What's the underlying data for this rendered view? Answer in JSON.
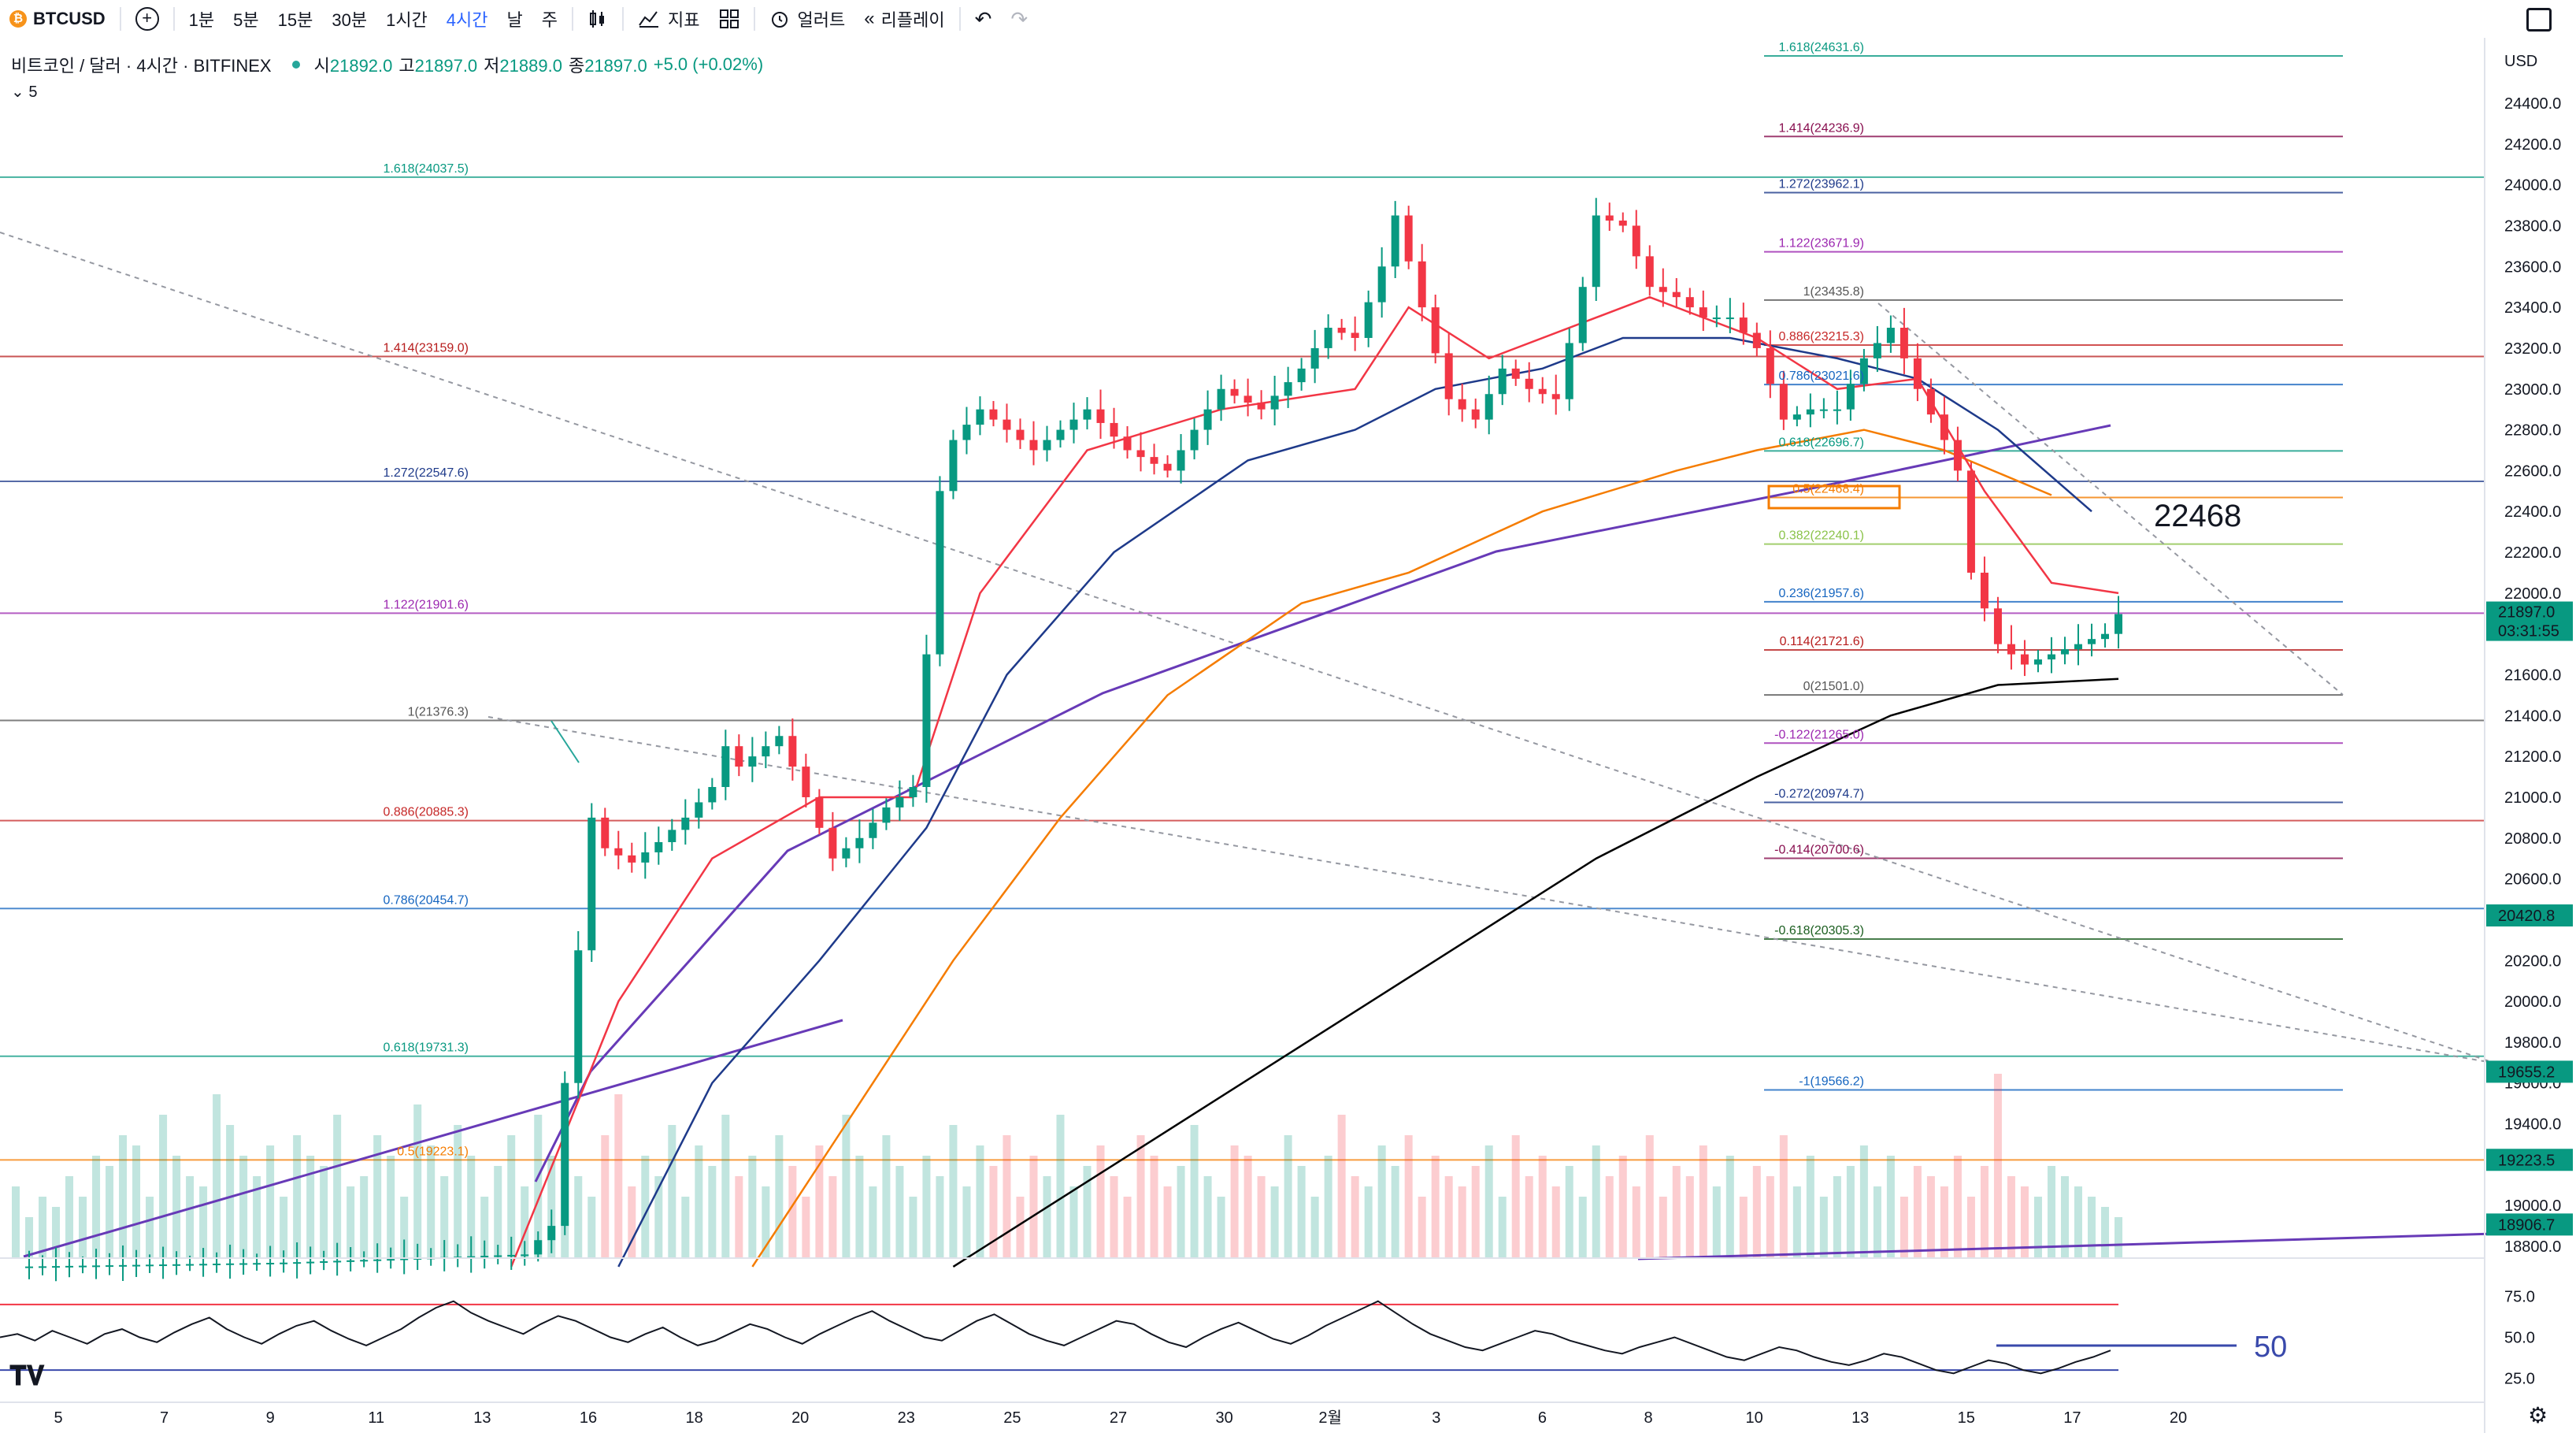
{
  "toolbar": {
    "symbol": "BTCUSD",
    "intervals": [
      "1분",
      "5분",
      "15분",
      "30분",
      "1시간",
      "4시간",
      "날",
      "주"
    ],
    "active_interval": "4시간",
    "indicators_label": "지표",
    "alert_label": "얼러트",
    "replay_label": "리플레이"
  },
  "legend": {
    "title": "비트코인 / 달러 · 4시간 · BITFINEX",
    "open_label": "시",
    "open": "21892.0",
    "high_label": "고",
    "high": "21897.0",
    "low_label": "저",
    "low": "21889.0",
    "close_label": "종",
    "close": "21897.0",
    "change": "+5.0 (+0.02%)",
    "indicator_value": "5"
  },
  "price_axis": {
    "currency": "USD",
    "ticks": [
      "24400.0",
      "24200.0",
      "24000.0",
      "23800.0",
      "23600.0",
      "23400.0",
      "23200.0",
      "23000.0",
      "22800.0",
      "22600.0",
      "22400.0",
      "22200.0",
      "22000.0",
      "21800.0",
      "21600.0",
      "21400.0",
      "21200.0",
      "21000.0",
      "20800.0",
      "20600.0",
      "20400.0",
      "20200.0",
      "20000.0",
      "19800.0",
      "19600.0",
      "19400.0",
      "19200.0",
      "19000.0",
      "18800.0"
    ],
    "tick_values": [
      24400,
      24200,
      24000,
      23800,
      23600,
      23400,
      23200,
      23000,
      22800,
      22600,
      22400,
      22200,
      22000,
      21800,
      21600,
      21400,
      21200,
      21000,
      20800,
      20600,
      20400,
      20200,
      20000,
      19800,
      19600,
      19400,
      19200,
      19000,
      18800
    ],
    "price_tags": [
      {
        "text": "20420.8",
        "value": 20420.8,
        "color": "#089981"
      },
      {
        "text": "19655.2",
        "value": 19655.2,
        "color": "#089981"
      },
      {
        "text": "19223.5",
        "value": 19223.5,
        "color": "#089981"
      },
      {
        "text": "18906.7",
        "value": 18906.7,
        "color": "#089981"
      }
    ],
    "current_price": "21897.0",
    "countdown": "03:31:55"
  },
  "rsi_axis": {
    "ticks": [
      "75.0",
      "50.0",
      "25.0"
    ],
    "tick_values": [
      75,
      50,
      25
    ],
    "annotation": "50"
  },
  "time_axis": {
    "labels": [
      "5",
      "7",
      "9",
      "11",
      "13",
      "16",
      "18",
      "20",
      "23",
      "25",
      "27",
      "30",
      "2월",
      "3",
      "6",
      "8",
      "10",
      "13",
      "15",
      "17",
      "20"
    ]
  },
  "annotations": {
    "target_price": "22468"
  },
  "fib_left": [
    {
      "text": "1.618(24037.5)",
      "value": 24037.5,
      "color": "#089981"
    },
    {
      "text": "1.414(23159.0)",
      "value": 23159.0,
      "color": "#b71c1c"
    },
    {
      "text": "1.272(22547.6)",
      "value": 22547.6,
      "color": "#1e3a8a"
    },
    {
      "text": "1.122(21901.6)",
      "value": 21901.6,
      "color": "#9c27b0"
    },
    {
      "text": "1(21376.3)",
      "value": 21376.3,
      "color": "#555555"
    },
    {
      "text": "0.886(20885.3)",
      "value": 20885.3,
      "color": "#c62828"
    },
    {
      "text": "0.786(20454.7)",
      "value": 20454.7,
      "color": "#1565c0"
    },
    {
      "text": "0.618(19731.3)",
      "value": 19731.3,
      "color": "#089981"
    },
    {
      "text": "0.5(19223.1)",
      "value": 19223.1,
      "color": "#f57c00"
    }
  ],
  "fib_right": [
    {
      "text": "1.618(24631.6)",
      "value": 24631.6,
      "color": "#089981"
    },
    {
      "text": "1.414(24236.9)",
      "value": 24236.9,
      "color": "#880e4f"
    },
    {
      "text": "1.272(23962.1)",
      "value": 23962.1,
      "color": "#1e3a8a"
    },
    {
      "text": "1.122(23671.9)",
      "value": 23671.9,
      "color": "#9c27b0"
    },
    {
      "text": "1(23435.8)",
      "value": 23435.8,
      "color": "#555555"
    },
    {
      "text": "0.886(23215.3)",
      "value": 23215.3,
      "color": "#c62828"
    },
    {
      "text": "0.786(23021.6)",
      "value": 23021.6,
      "color": "#1565c0"
    },
    {
      "text": "0.618(22696.7)",
      "value": 22696.7,
      "color": "#089981"
    },
    {
      "text": "0.5(22468.4)",
      "value": 22468.4,
      "color": "#f57c00"
    },
    {
      "text": "0.382(22240.1)",
      "value": 22240.1,
      "color": "#8bc34a"
    },
    {
      "text": "0.236(21957.6)",
      "value": 21957.6,
      "color": "#1565c0"
    },
    {
      "text": "0.114(21721.6)",
      "value": 21721.6,
      "color": "#b71c1c"
    },
    {
      "text": "0(21501.0)",
      "value": 21501.0,
      "color": "#555555"
    },
    {
      "text": "-0.122(21265.0)",
      "value": 21265.0,
      "color": "#9c27b0"
    },
    {
      "text": "-0.272(20974.7)",
      "value": 20974.7,
      "color": "#1e3a8a"
    },
    {
      "text": "-0.414(20700.6)",
      "value": 20700.6,
      "color": "#880e4f"
    },
    {
      "text": "-0.618(20305.3)",
      "value": 20305.3,
      "color": "#1b5e20"
    },
    {
      "text": "-1(19566.2)",
      "value": 19566.2,
      "color": "#1565c0"
    }
  ],
  "chart_data": {
    "type": "candlestick",
    "symbol": "BTCUSD",
    "x_labels": [
      "5",
      "7",
      "9",
      "11",
      "13",
      "16",
      "18",
      "20",
      "23",
      "25",
      "27",
      "30",
      "2월",
      "3",
      "6",
      "8",
      "10",
      "13"
    ],
    "ylim": [
      18700,
      24600
    ],
    "colors": {
      "up": "#089981",
      "down": "#f23645",
      "ma_fast": "#f23645",
      "ma_mid": "#1e3a8a",
      "ma_slow": "#f57c00",
      "ma_long": "#000000",
      "trend": "#673ab7"
    },
    "close_path": [
      [
        0,
        18700
      ],
      [
        20,
        18720
      ],
      [
        38,
        18760
      ],
      [
        40,
        18900
      ],
      [
        41,
        19600
      ],
      [
        42,
        20250
      ],
      [
        43,
        20900
      ],
      [
        44,
        20750
      ],
      [
        46,
        20680
      ],
      [
        48,
        20780
      ],
      [
        50,
        20900
      ],
      [
        52,
        21050
      ],
      [
        53,
        21250
      ],
      [
        54,
        21150
      ],
      [
        55,
        21200
      ],
      [
        57,
        21300
      ],
      [
        58,
        21150
      ],
      [
        60,
        20850
      ],
      [
        61,
        20700
      ],
      [
        63,
        20800
      ],
      [
        65,
        20950
      ],
      [
        67,
        21050
      ],
      [
        68,
        21700
      ],
      [
        69,
        22500
      ],
      [
        70,
        22750
      ],
      [
        72,
        22900
      ],
      [
        74,
        22800
      ],
      [
        76,
        22700
      ],
      [
        78,
        22800
      ],
      [
        80,
        22900
      ],
      [
        83,
        22700
      ],
      [
        86,
        22600
      ],
      [
        88,
        22800
      ],
      [
        90,
        23000
      ],
      [
        93,
        22900
      ],
      [
        96,
        23100
      ],
      [
        98,
        23300
      ],
      [
        100,
        23250
      ],
      [
        102,
        23600
      ],
      [
        103,
        23850
      ],
      [
        105,
        23400
      ],
      [
        107,
        22950
      ],
      [
        109,
        22850
      ],
      [
        111,
        23100
      ],
      [
        113,
        23000
      ],
      [
        115,
        22950
      ],
      [
        117,
        23500
      ],
      [
        118,
        23850
      ],
      [
        120,
        23800
      ],
      [
        122,
        23500
      ],
      [
        124,
        23450
      ],
      [
        126,
        23350
      ],
      [
        128,
        23350
      ],
      [
        130,
        23200
      ],
      [
        132,
        22850
      ],
      [
        134,
        22900
      ],
      [
        136,
        22900
      ],
      [
        138,
        23150
      ],
      [
        140,
        23300
      ],
      [
        142,
        23000
      ],
      [
        144,
        22750
      ],
      [
        145,
        22600
      ],
      [
        146,
        22100
      ],
      [
        148,
        21750
      ],
      [
        150,
        21650
      ],
      [
        152,
        21700
      ],
      [
        154,
        21750
      ],
      [
        156,
        21800
      ],
      [
        157,
        21897
      ]
    ],
    "ma_fast": [
      [
        37,
        18700
      ],
      [
        45,
        20000
      ],
      [
        52,
        20700
      ],
      [
        60,
        21000
      ],
      [
        67,
        21000
      ],
      [
        72,
        22000
      ],
      [
        80,
        22700
      ],
      [
        90,
        22900
      ],
      [
        100,
        23000
      ],
      [
        104,
        23400
      ],
      [
        110,
        23150
      ],
      [
        118,
        23350
      ],
      [
        122,
        23450
      ],
      [
        130,
        23250
      ],
      [
        136,
        23000
      ],
      [
        142,
        23050
      ],
      [
        147,
        22500
      ],
      [
        152,
        22050
      ],
      [
        157,
        22000
      ]
    ],
    "ma_mid": [
      [
        45,
        18700
      ],
      [
        52,
        19600
      ],
      [
        60,
        20200
      ],
      [
        68,
        20850
      ],
      [
        74,
        21600
      ],
      [
        82,
        22200
      ],
      [
        92,
        22650
      ],
      [
        100,
        22800
      ],
      [
        106,
        23000
      ],
      [
        114,
        23100
      ],
      [
        120,
        23250
      ],
      [
        128,
        23250
      ],
      [
        136,
        23150
      ],
      [
        142,
        23050
      ],
      [
        148,
        22800
      ],
      [
        155,
        22400
      ]
    ],
    "ma_slow": [
      [
        55,
        18700
      ],
      [
        62,
        19400
      ],
      [
        70,
        20200
      ],
      [
        78,
        20900
      ],
      [
        86,
        21500
      ],
      [
        96,
        21950
      ],
      [
        104,
        22100
      ],
      [
        114,
        22400
      ],
      [
        124,
        22600
      ],
      [
        130,
        22700
      ],
      [
        138,
        22800
      ],
      [
        144,
        22700
      ],
      [
        152,
        22480
      ]
    ],
    "ma_long": [
      [
        70,
        18700
      ],
      [
        82,
        19200
      ],
      [
        94,
        19700
      ],
      [
        106,
        20200
      ],
      [
        118,
        20700
      ],
      [
        130,
        21100
      ],
      [
        140,
        21400
      ],
      [
        148,
        21550
      ],
      [
        157,
        21580
      ]
    ],
    "volume": [
      0.35,
      0.2,
      0.3,
      0.25,
      0.4,
      0.3,
      0.5,
      0.45,
      0.6,
      0.55,
      0.3,
      0.7,
      0.5,
      0.4,
      0.35,
      0.8,
      0.65,
      0.5,
      0.4,
      0.55,
      0.3,
      0.6,
      0.5,
      0.45,
      0.7,
      0.35,
      0.4,
      0.6,
      0.5,
      0.3,
      0.75,
      0.55,
      0.4,
      0.65,
      0.5,
      0.3,
      0.45,
      0.6,
      0.35,
      0.7,
      0.5,
      0.55,
      0.4,
      0.3,
      0.6,
      0.8,
      0.35,
      0.5,
      0.4,
      0.65,
      0.3,
      0.55,
      0.45,
      0.7,
      0.4,
      0.5,
      0.35,
      0.6,
      0.45,
      0.3,
      0.55,
      0.4,
      0.7,
      0.5,
      0.35,
      0.6,
      0.45,
      0.3,
      0.5,
      0.4,
      0.65,
      0.35,
      0.55,
      0.45,
      0.6,
      0.3,
      0.5,
      0.4,
      0.7,
      0.35,
      0.45,
      0.55,
      0.4,
      0.3,
      0.6,
      0.5,
      0.35,
      0.45,
      0.65,
      0.4,
      0.3,
      0.55,
      0.5,
      0.4,
      0.35,
      0.6,
      0.45,
      0.3,
      0.5,
      0.7,
      0.4,
      0.35,
      0.55,
      0.45,
      0.6,
      0.3,
      0.5,
      0.4,
      0.35,
      0.45,
      0.55,
      0.3,
      0.6,
      0.4,
      0.5,
      0.35,
      0.45,
      0.3,
      0.55,
      0.4,
      0.5,
      0.35,
      0.6,
      0.3,
      0.45,
      0.4,
      0.55,
      0.35,
      0.5,
      0.3,
      0.45,
      0.4,
      0.6,
      0.35,
      0.5,
      0.3,
      0.4,
      0.45,
      0.55,
      0.35,
      0.5,
      0.3,
      0.45,
      0.4,
      0.35,
      0.5,
      0.3,
      0.45,
      0.9,
      0.4,
      0.35,
      0.3,
      0.45,
      0.4,
      0.35,
      0.3,
      0.25,
      0.2,
      0.15,
      0.12
    ],
    "rsi": [
      50,
      52,
      48,
      54,
      50,
      46,
      52,
      55,
      50,
      47,
      53,
      58,
      62,
      55,
      50,
      46,
      52,
      57,
      60,
      54,
      49,
      45,
      50,
      55,
      62,
      68,
      72,
      65,
      60,
      56,
      52,
      58,
      63,
      60,
      55,
      50,
      47,
      52,
      56,
      50,
      45,
      48,
      53,
      58,
      55,
      50,
      46,
      52,
      57,
      62,
      66,
      60,
      55,
      50,
      48,
      54,
      60,
      64,
      58,
      52,
      48,
      45,
      50,
      55,
      60,
      58,
      52,
      47,
      44,
      50,
      55,
      59,
      54,
      49,
      46,
      51,
      57,
      62,
      67,
      72,
      65,
      58,
      52,
      48,
      44,
      42,
      46,
      50,
      54,
      52,
      48,
      45,
      42,
      40,
      44,
      47,
      50,
      46,
      42,
      38,
      36,
      40,
      44,
      42,
      38,
      35,
      33,
      36,
      40,
      38,
      34,
      30,
      28,
      32,
      36,
      34,
      30,
      28,
      31,
      35,
      38,
      42
    ]
  },
  "rsi_data": {
    "upper": 70,
    "lower": 30,
    "reference": 50
  }
}
